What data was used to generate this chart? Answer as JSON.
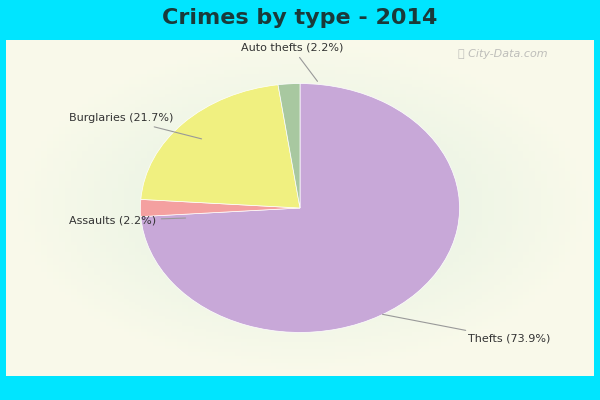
{
  "title": "Crimes by type - 2014",
  "title_fontsize": 16,
  "title_fontweight": "bold",
  "title_color": "#1a3a3a",
  "slices": [
    {
      "label": "Thefts (73.9%)",
      "value": 73.9,
      "color": "#c8a8d8"
    },
    {
      "label": "Auto thefts (2.2%)",
      "value": 2.2,
      "color": "#f4a0a0"
    },
    {
      "label": "Burglaries (21.7%)",
      "value": 21.7,
      "color": "#f0f080"
    },
    {
      "label": "Assaults (2.2%)",
      "value": 2.2,
      "color": "#a8c8a0"
    }
  ],
  "bg_outer": "#00e5ff",
  "bg_inner_color": "#d0ede0",
  "watermark": "ⓘ City-Data.com",
  "startangle": 90,
  "label_fontsize": 8,
  "label_color": "#333333"
}
